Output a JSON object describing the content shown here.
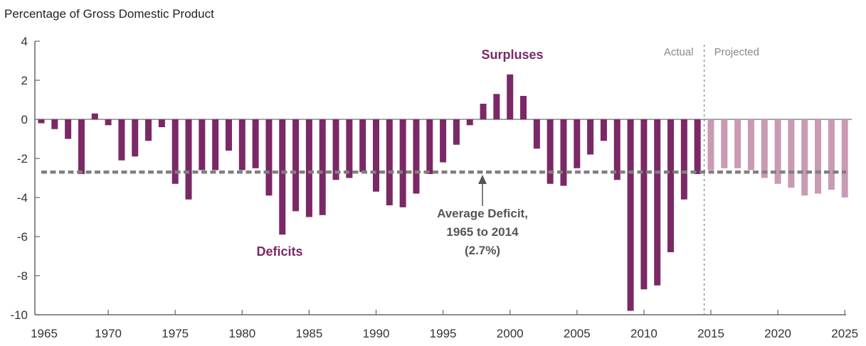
{
  "chart_data": {
    "type": "bar",
    "title": "",
    "ylabel": "Percentage of Gross Domestic Product",
    "xlabel": "",
    "ylim": [
      -10,
      4
    ],
    "yticks": [
      4,
      2,
      0,
      -2,
      -4,
      -6,
      -8,
      -10
    ],
    "ytick_labels": [
      "4",
      "2",
      "0",
      "-2",
      "-4",
      "-6",
      "-8",
      "-10"
    ],
    "xticks": [
      1965,
      1970,
      1975,
      1980,
      1985,
      1990,
      1995,
      2000,
      2005,
      2010,
      2015,
      2020,
      2025
    ],
    "xtick_labels": [
      "1965",
      "1970",
      "1975",
      "1980",
      "1985",
      "1990",
      "1995",
      "2000",
      "2005",
      "2010",
      "2015",
      "2020",
      "2025"
    ],
    "grid": false,
    "legend": null,
    "series": [
      {
        "name": "Actual",
        "color": "#7b2866",
        "x": [
          1965,
          1966,
          1967,
          1968,
          1969,
          1970,
          1971,
          1972,
          1973,
          1974,
          1975,
          1976,
          1977,
          1978,
          1979,
          1980,
          1981,
          1982,
          1983,
          1984,
          1985,
          1986,
          1987,
          1988,
          1989,
          1990,
          1991,
          1992,
          1993,
          1994,
          1995,
          1996,
          1997,
          1998,
          1999,
          2000,
          2001,
          2002,
          2003,
          2004,
          2005,
          2006,
          2007,
          2008,
          2009,
          2010,
          2011,
          2012,
          2013,
          2014
        ],
        "values": [
          -0.2,
          -0.5,
          -1.0,
          -2.8,
          0.3,
          -0.3,
          -2.1,
          -1.9,
          -1.1,
          -0.4,
          -3.3,
          -4.1,
          -2.6,
          -2.6,
          -1.6,
          -2.6,
          -2.5,
          -3.9,
          -5.9,
          -4.7,
          -5.0,
          -4.9,
          -3.1,
          -3.0,
          -2.7,
          -3.7,
          -4.4,
          -4.5,
          -3.8,
          -2.8,
          -2.2,
          -1.3,
          -0.3,
          0.8,
          1.3,
          2.3,
          1.2,
          -1.5,
          -3.3,
          -3.4,
          -2.5,
          -1.8,
          -1.1,
          -3.1,
          -9.8,
          -8.7,
          -8.5,
          -6.8,
          -4.1,
          -2.8
        ]
      },
      {
        "name": "Projected",
        "color": "#c99ab4",
        "x": [
          2015,
          2016,
          2017,
          2018,
          2019,
          2020,
          2021,
          2022,
          2023,
          2024,
          2025
        ],
        "values": [
          -2.6,
          -2.5,
          -2.5,
          -2.6,
          -3.0,
          -3.3,
          -3.5,
          -3.9,
          -3.8,
          -3.6,
          -4.0
        ]
      }
    ],
    "reference_line": {
      "name": "Average Deficit, 1965 to 2014",
      "value": -2.7,
      "style": "dashed",
      "color": "#808080"
    },
    "divider": {
      "between": [
        2014,
        2015
      ],
      "left_label": "Actual",
      "right_label": "Projected"
    },
    "annotations": {
      "surpluses": "Surpluses",
      "deficits": "Deficits",
      "average_line1": "Average Deficit,",
      "average_line2": "1965 to 2014",
      "average_line3": "(2.7%)"
    }
  }
}
